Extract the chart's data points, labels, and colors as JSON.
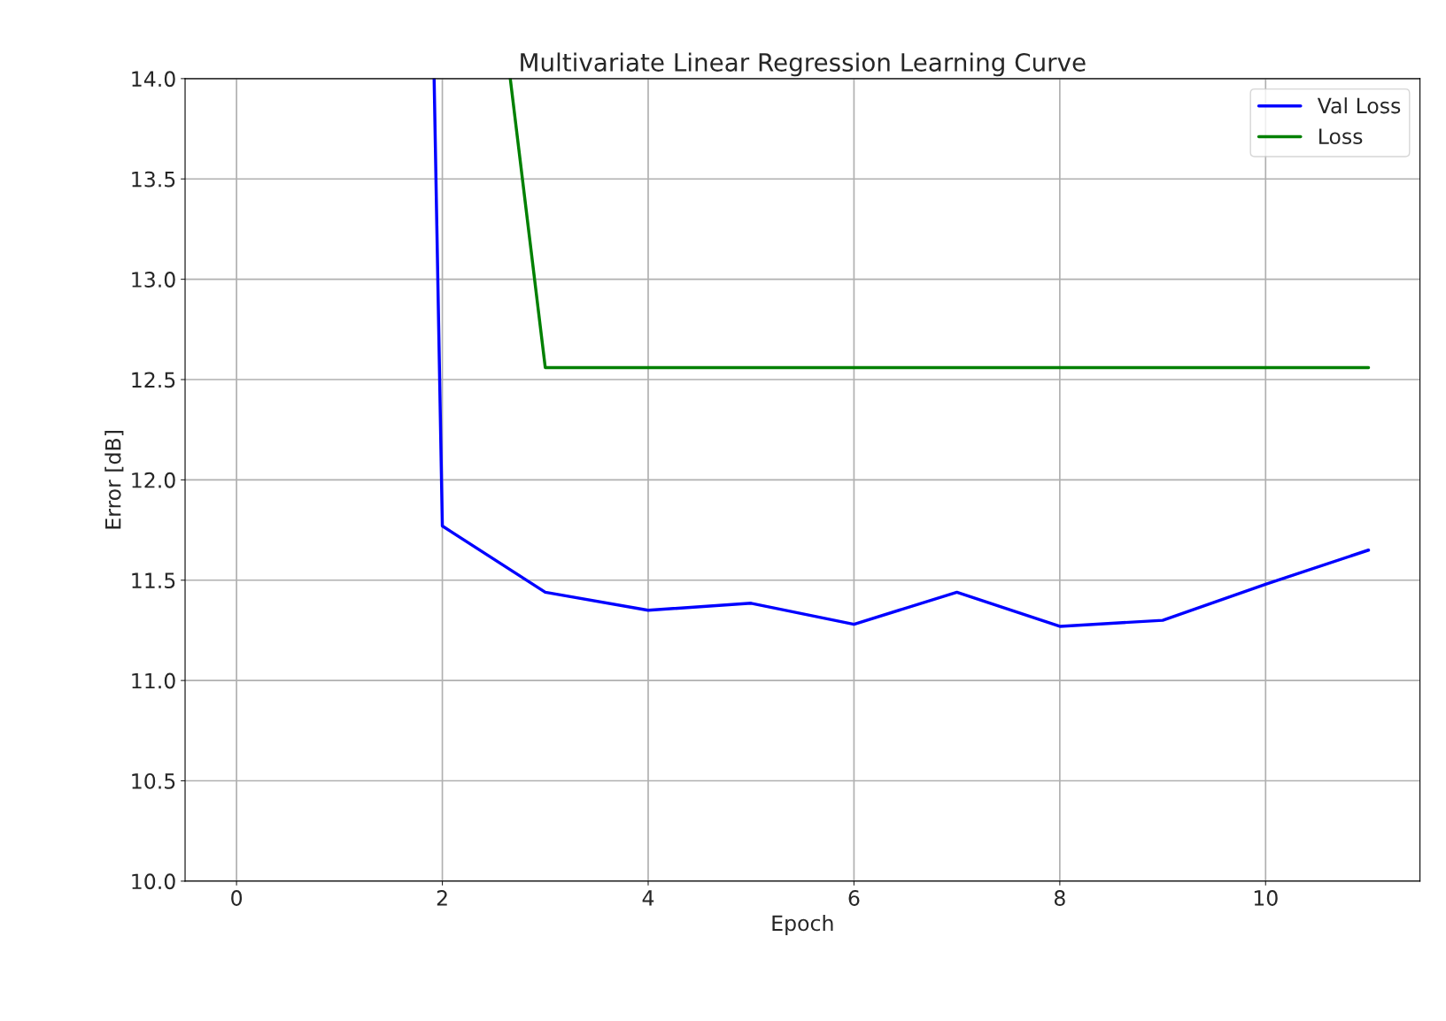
{
  "chart_data": {
    "type": "line",
    "title": "Multivariate Linear Regression Learning Curve",
    "xlabel": "Epoch",
    "ylabel": "Error [dB]",
    "series": [
      {
        "name": "Val Loss",
        "color": "#0000ff",
        "x": [
          1.92,
          2,
          3,
          4,
          5,
          6,
          7,
          8,
          9,
          10,
          11
        ],
        "values": [
          14.0,
          11.77,
          11.44,
          11.35,
          11.385,
          11.28,
          11.44,
          11.27,
          11.3,
          11.48,
          11.65
        ]
      },
      {
        "name": "Loss",
        "color": "#008000",
        "x": [
          2.66,
          3,
          4,
          5,
          6,
          7,
          8,
          9,
          10,
          11
        ],
        "values": [
          14.0,
          12.56,
          12.56,
          12.56,
          12.56,
          12.56,
          12.56,
          12.56,
          12.56,
          12.56
        ]
      }
    ],
    "xlim": [
      -0.5,
      11.5
    ],
    "xticks": [
      0,
      2,
      4,
      6,
      8,
      10
    ],
    "ylim": [
      10.0,
      14.0
    ],
    "yticks": [
      {
        "value": 10,
        "label": "10.0"
      },
      {
        "value": 10.5,
        "label": "10.5"
      },
      {
        "value": 11,
        "label": "11.0"
      },
      {
        "value": 11.5,
        "label": "11.5"
      },
      {
        "value": 12,
        "label": "12.0"
      },
      {
        "value": 12.5,
        "label": "12.5"
      },
      {
        "value": 13,
        "label": "13.0"
      },
      {
        "value": 13.5,
        "label": "13.5"
      },
      {
        "value": 14,
        "label": "14.0"
      }
    ],
    "grid": true,
    "legend": "top right"
  }
}
